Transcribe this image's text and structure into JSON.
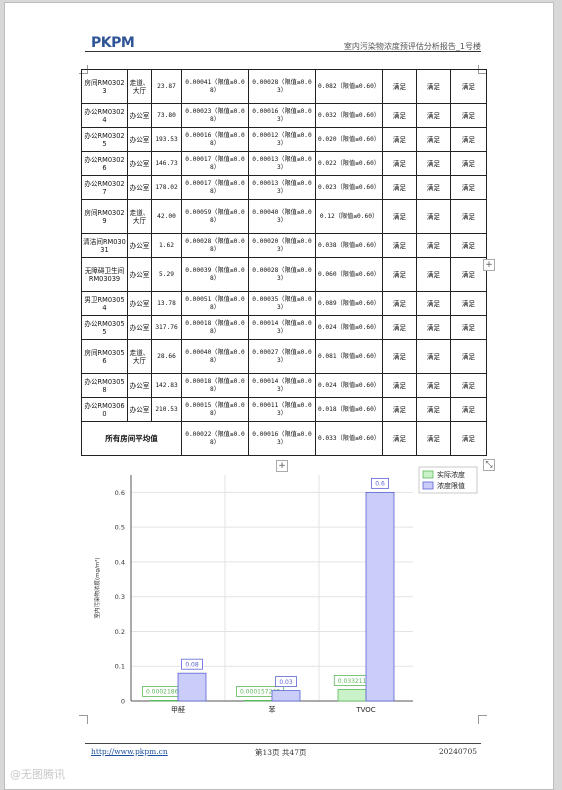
{
  "header": {
    "logo": "PKPM",
    "doc_title": "室内污染物浓度预评估分析报告_1号楼"
  },
  "table": {
    "rows": [
      {
        "room": "房间RM03023",
        "func": "走道、大厅",
        "area": "23.87",
        "formaldehyde": "0.00041（限值≤0.08）",
        "benzene": "0.00028（限值≤0.03）",
        "tvoc": "0.082（限值≤0.60）",
        "r1": "满足",
        "r2": "满足",
        "r3": "满足",
        "tall": true
      },
      {
        "room": "办公RM03024",
        "func": "办公室",
        "area": "73.80",
        "formaldehyde": "0.00023（限值≤0.08）",
        "benzene": "0.00016（限值≤0.03）",
        "tvoc": "0.032（限值≤0.60）",
        "r1": "满足",
        "r2": "满足",
        "r3": "满足",
        "tall": false
      },
      {
        "room": "办公RM03025",
        "func": "办公室",
        "area": "193.53",
        "formaldehyde": "0.00016（限值≤0.08）",
        "benzene": "0.00012（限值≤0.03）",
        "tvoc": "0.020（限值≤0.60）",
        "r1": "满足",
        "r2": "满足",
        "r3": "满足",
        "tall": false
      },
      {
        "room": "办公RM03026",
        "func": "办公室",
        "area": "146.73",
        "formaldehyde": "0.00017（限值≤0.08）",
        "benzene": "0.00013（限值≤0.03）",
        "tvoc": "0.022（限值≤0.60）",
        "r1": "满足",
        "r2": "满足",
        "r3": "满足",
        "tall": false
      },
      {
        "room": "办公RM03027",
        "func": "办公室",
        "area": "178.02",
        "formaldehyde": "0.00017（限值≤0.08）",
        "benzene": "0.00013（限值≤0.03）",
        "tvoc": "0.023（限值≤0.60）",
        "r1": "满足",
        "r2": "满足",
        "r3": "满足",
        "tall": false
      },
      {
        "room": "房间RM03029",
        "func": "走道、大厅",
        "area": "42.00",
        "formaldehyde": "0.00059（限值≤0.08）",
        "benzene": "0.00040（限值≤0.03）",
        "tvoc": "0.12（限值≤0.60）",
        "r1": "满足",
        "r2": "满足",
        "r3": "满足",
        "tall": true
      },
      {
        "room": "清洁间RM03031",
        "func": "办公室",
        "area": "1.62",
        "formaldehyde": "0.00028（限值≤0.08）",
        "benzene": "0.00020（限值≤0.03）",
        "tvoc": "0.038（限值≤0.60）",
        "r1": "满足",
        "r2": "满足",
        "r3": "满足",
        "tall": false
      },
      {
        "room": "无障碍卫生间RM03039",
        "func": "办公室",
        "area": "5.29",
        "formaldehyde": "0.00039（限值≤0.08）",
        "benzene": "0.00028（限值≤0.03）",
        "tvoc": "0.060（限值≤0.60）",
        "r1": "满足",
        "r2": "满足",
        "r3": "满足",
        "tall": true
      },
      {
        "room": "男卫RM03054",
        "func": "办公室",
        "area": "13.78",
        "formaldehyde": "0.00051（限值≤0.08）",
        "benzene": "0.00035（限值≤0.03）",
        "tvoc": "0.089（限值≤0.60）",
        "r1": "满足",
        "r2": "满足",
        "r3": "满足",
        "tall": false
      },
      {
        "room": "办公RM03055",
        "func": "办公室",
        "area": "317.76",
        "formaldehyde": "0.00018（限值≤0.08）",
        "benzene": "0.00014（限值≤0.03）",
        "tvoc": "0.024（限值≤0.60）",
        "r1": "满足",
        "r2": "满足",
        "r3": "满足",
        "tall": false
      },
      {
        "room": "房间RM03056",
        "func": "走道、大厅",
        "area": "28.66",
        "formaldehyde": "0.00040（限值≤0.08）",
        "benzene": "0.00027（限值≤0.03）",
        "tvoc": "0.081（限值≤0.60）",
        "r1": "满足",
        "r2": "满足",
        "r3": "满足",
        "tall": true
      },
      {
        "room": "办公RM03058",
        "func": "办公室",
        "area": "142.83",
        "formaldehyde": "0.00018（限值≤0.08）",
        "benzene": "0.00014（限值≤0.03）",
        "tvoc": "0.024（限值≤0.60）",
        "r1": "满足",
        "r2": "满足",
        "r3": "满足",
        "tall": false
      },
      {
        "room": "办公RM03060",
        "func": "办公室",
        "area": "210.53",
        "formaldehyde": "0.00015（限值≤0.08）",
        "benzene": "0.00011（限值≤0.03）",
        "tvoc": "0.018（限值≤0.60）",
        "r1": "满足",
        "r2": "满足",
        "r3": "满足",
        "tall": false
      }
    ],
    "average": {
      "label": "所有房间平均值",
      "formaldehyde": "0.00022（限值≤0.08）",
      "benzene": "0.00016（限值≤0.03）",
      "tvoc": "0.033（限值≤0.60）",
      "r1": "满足",
      "r2": "满足",
      "r3": "满足"
    }
  },
  "chart_data": {
    "type": "bar",
    "categories": [
      "甲醛",
      "苯",
      "TVOC"
    ],
    "series": [
      {
        "name": "实际浓度",
        "values": [
          0.000218602,
          0.000157248,
          0.0332115
        ],
        "labels": [
          "0.000218602",
          "0.000157248",
          "0.0332115"
        ],
        "color": "#c9f2c9",
        "stroke": "#5cb85c"
      },
      {
        "name": "浓度限值",
        "values": [
          0.08,
          0.03,
          0.6
        ],
        "labels": [
          "0.08",
          "0.03",
          "0.6"
        ],
        "color": "#c9cdf7",
        "stroke": "#5b63d6"
      }
    ],
    "ylabel": "室内污染物浓度(mg/m³)",
    "ylim": [
      0,
      0.65
    ],
    "yticks": [
      "0",
      "0.1",
      "0.2",
      "0.3",
      "0.4",
      "0.5",
      "0.6"
    ],
    "grid": true,
    "legend": "top-right"
  },
  "footer": {
    "link": "http://www.pkpm.cn",
    "page": "第13页 共47页",
    "date": "20240705"
  },
  "watermark": "@无图腾讯",
  "buttons": {
    "add": "+",
    "expand": "⤡"
  }
}
